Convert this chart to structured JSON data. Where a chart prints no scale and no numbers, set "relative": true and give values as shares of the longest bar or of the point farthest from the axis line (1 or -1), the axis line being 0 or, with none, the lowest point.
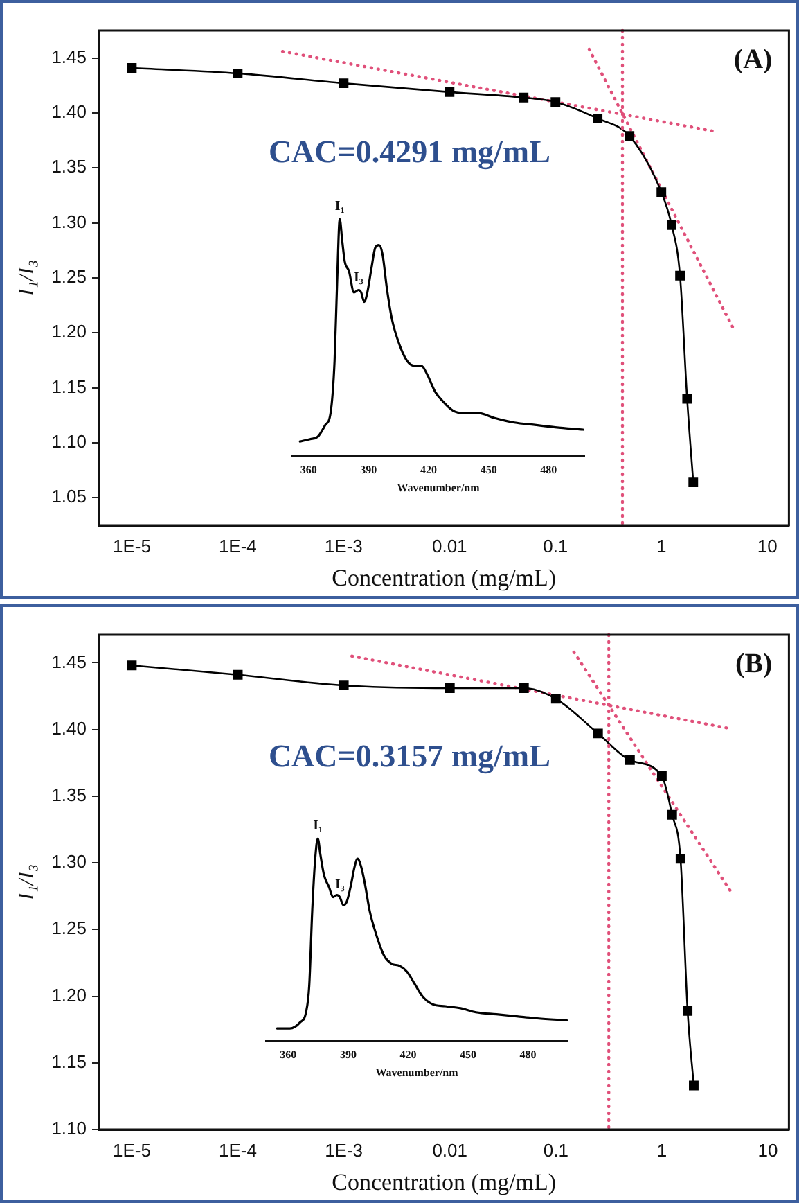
{
  "chart_data": [
    {
      "type": "line",
      "title": "(A)",
      "xlabel": "Concentration (mg/mL)",
      "ylabel": "I₁/I₃",
      "log": "x",
      "marker": "square",
      "x": [
        1e-05,
        0.0001,
        0.001,
        0.01,
        0.05,
        0.1,
        0.25,
        0.5,
        1,
        1.25,
        1.5,
        1.75,
        2
      ],
      "series": [
        {
          "color": "#000000",
          "values": [
            1.441,
            1.436,
            1.427,
            1.419,
            1.414,
            1.41,
            1.395,
            1.379,
            1.328,
            1.298,
            1.252,
            1.14,
            1.064
          ]
        },
        {
          "type": "line",
          "color": "#e0507a",
          "marker": "none",
          "line_style": "dotted",
          "x": [
            0.000265,
            3.3
          ],
          "values": [
            1.456,
            1.383
          ]
        },
        {
          "type": "line",
          "color": "#e0507a",
          "marker": "none",
          "line_style": "dotted",
          "x": [
            0.208,
            4.9
          ],
          "values": [
            1.458,
            1.202
          ]
        }
      ],
      "ref_lines": [
        {
          "axis": "x",
          "value": 0.4291,
          "color": "#e0507a",
          "line_style": "dotted"
        }
      ],
      "annotations": [
        "CAC=0.4291 mg/mL"
      ],
      "xlim": [
        4.9e-06,
        16
      ],
      "ylim": [
        1.025,
        1.475
      ],
      "xticks": [
        {
          "value": 1e-05,
          "label": "1E-5"
        },
        {
          "value": 0.0001,
          "label": "1E-4"
        },
        {
          "value": 0.001,
          "label": "1E-3"
        },
        0.01,
        0.1,
        1,
        10
      ],
      "yticks": [
        1.05,
        {
          "value": 1.1,
          "label": "1.10"
        },
        1.15,
        {
          "value": 1.2,
          "label": "1.20"
        },
        1.25,
        {
          "value": 1.3,
          "label": "1.30"
        },
        1.35,
        {
          "value": 1.4,
          "label": "1.40"
        },
        1.45
      ]
    },
    {
      "type": "line",
      "relative": true,
      "xlabel": "Wavenumber/nm",
      "color": "#000000",
      "x": [
        355.7,
        360.8,
        364.6,
        368.4,
        371.0,
        373.0,
        374.3,
        375.6,
        376.8,
        378.1,
        380.2,
        382.7,
        385.0,
        386.3,
        387.8,
        389.4,
        391.4,
        393.4,
        395.2,
        397.0,
        399.1,
        401.6,
        405.4,
        409.3,
        413.1,
        416.4,
        419.5,
        423.3,
        427.1,
        432.2,
        437.4,
        445.0,
        452.7,
        462.9,
        473.1,
        483.3,
        497.3
      ],
      "values": [
        0.06,
        0.07,
        0.08,
        0.13,
        0.18,
        0.4,
        0.74,
        1,
        0.91,
        0.82,
        0.78,
        0.69,
        0.7,
        0.69,
        0.65,
        0.69,
        0.79,
        0.88,
        0.89,
        0.85,
        0.71,
        0.58,
        0.47,
        0.4,
        0.38,
        0.38,
        0.34,
        0.27,
        0.23,
        0.19,
        0.18,
        0.18,
        0.16,
        0.14,
        0.13,
        0.12,
        0.11
      ],
      "annotations": [
        {
          "text": "I₁",
          "x": 375.6,
          "y": 1
        },
        {
          "text": "I₃",
          "x": 385.0,
          "y": 0.7
        }
      ],
      "xlim": [
        351.8,
        497.9
      ],
      "xticks": [
        360,
        390,
        420,
        450,
        480
      ]
    },
    {
      "type": "line",
      "title": "(B)",
      "xlabel": "Concentration (mg/mL)",
      "ylabel": "I₁/I₃",
      "log": "x",
      "marker": "square",
      "x": [
        1e-05,
        0.0001,
        0.001,
        0.01,
        0.05,
        0.1,
        0.25,
        0.5,
        1,
        1.25,
        1.5,
        1.75,
        2
      ],
      "series": [
        {
          "color": "#000000",
          "values": [
            1.448,
            1.441,
            1.433,
            1.431,
            1.431,
            1.423,
            1.397,
            1.377,
            1.365,
            1.336,
            1.303,
            1.189,
            1.133
          ]
        },
        {
          "type": "line",
          "color": "#e0507a",
          "marker": "none",
          "line_style": "dotted",
          "x": [
            0.00119,
            4.19
          ],
          "values": [
            1.455,
            1.401
          ]
        },
        {
          "type": "line",
          "color": "#e0507a",
          "marker": "none",
          "line_style": "dotted",
          "x": [
            0.148,
            4.43
          ],
          "values": [
            1.458,
            1.279
          ]
        }
      ],
      "ref_lines": [
        {
          "axis": "x",
          "value": 0.3157,
          "color": "#e0507a",
          "line_style": "dotted"
        }
      ],
      "annotations": [
        "CAC=0.3157 mg/mL"
      ],
      "xlim": [
        4.9e-06,
        15.8
      ],
      "ylim": [
        1.1,
        1.471
      ],
      "xticks": [
        {
          "value": 1e-05,
          "label": "1E-5"
        },
        {
          "value": 0.0001,
          "label": "1E-4"
        },
        {
          "value": 0.001,
          "label": "1E-3"
        },
        0.01,
        0.1,
        1,
        10
      ],
      "yticks": [
        {
          "value": 1.1,
          "label": "1.10"
        },
        1.15,
        {
          "value": 1.2,
          "label": "1.20"
        },
        1.25,
        {
          "value": 1.3,
          "label": "1.30"
        },
        1.35,
        {
          "value": 1.4,
          "label": "1.40"
        },
        1.45
      ]
    },
    {
      "type": "line",
      "relative": true,
      "xlabel": "Wavenumber/nm",
      "color": "#000000",
      "x": [
        354.4,
        360.8,
        365.9,
        368.9,
        370.5,
        372.0,
        373.5,
        374.8,
        376.1,
        377.9,
        380.4,
        382.5,
        384.3,
        385.8,
        387.6,
        389.4,
        391.4,
        393.2,
        394.7,
        396.5,
        398.3,
        400.8,
        404.2,
        408.0,
        411.8,
        415.7,
        419.5,
        423.3,
        427.1,
        432.2,
        438.6,
        446.3,
        453.9,
        464.2,
        474.4,
        484.6,
        499.4
      ],
      "values": [
        0.06,
        0.06,
        0.09,
        0.14,
        0.27,
        0.64,
        0.9,
        1,
        0.92,
        0.82,
        0.76,
        0.71,
        0.72,
        0.71,
        0.67,
        0.69,
        0.77,
        0.86,
        0.9,
        0.86,
        0.78,
        0.64,
        0.52,
        0.42,
        0.38,
        0.37,
        0.34,
        0.28,
        0.22,
        0.18,
        0.17,
        0.16,
        0.14,
        0.13,
        0.12,
        0.11,
        0.1
      ],
      "annotations": [
        {
          "text": "I₁",
          "x": 374.8,
          "y": 1
        },
        {
          "text": "I₃",
          "x": 385.8,
          "y": 0.71
        }
      ],
      "xlim": [
        348.8,
        499.9
      ],
      "xticks": [
        360,
        390,
        420,
        450,
        480
      ]
    }
  ]
}
